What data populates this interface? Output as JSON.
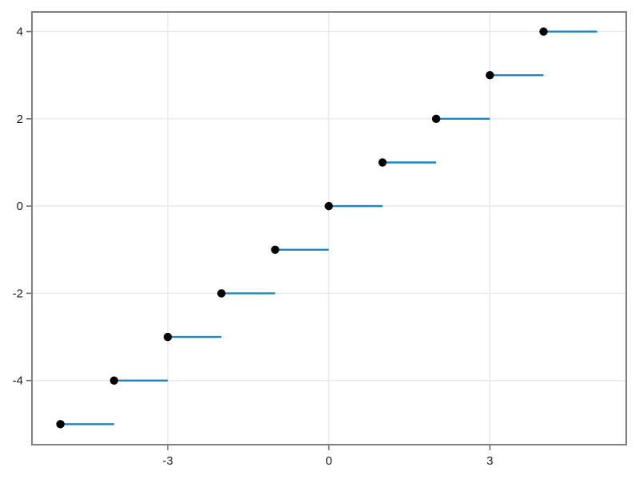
{
  "figure": {
    "background_color": "#ffffff"
  },
  "chart_data": {
    "type": "step",
    "title": "",
    "xlabel": "",
    "ylabel": "",
    "description": "Floor-style step function: filled dot at left (closed) end of each horizontal unit-length segment",
    "step_direction": "post",
    "step_width": 1,
    "x": [
      -5,
      -4,
      -3,
      -2,
      -1,
      0,
      1,
      2,
      3,
      4
    ],
    "y": [
      -5,
      -4,
      -3,
      -2,
      -1,
      0,
      1,
      2,
      3,
      4
    ],
    "x_ticks": [
      -3,
      0,
      3
    ],
    "x_tick_labels": [
      "-3",
      "0",
      "3"
    ],
    "y_ticks": [
      -4,
      -2,
      0,
      2,
      4
    ],
    "y_tick_labels": [
      "-4",
      "-2",
      "0",
      "2",
      "4"
    ],
    "xlim": [
      -5.53,
      5.54
    ],
    "ylim": [
      -5.47,
      4.45
    ],
    "grid": true,
    "legend": null,
    "marker": "filled-circle",
    "marker_size": 5.2,
    "line_width": 2.4,
    "colors": {
      "line": "#1f85c4",
      "marker": "#000000",
      "grid": "#e9e9e9",
      "spine": "#808080",
      "tick": "#6e6e6e",
      "tick_label": "#1a1a1a",
      "plot_background": "#ffffff"
    }
  }
}
